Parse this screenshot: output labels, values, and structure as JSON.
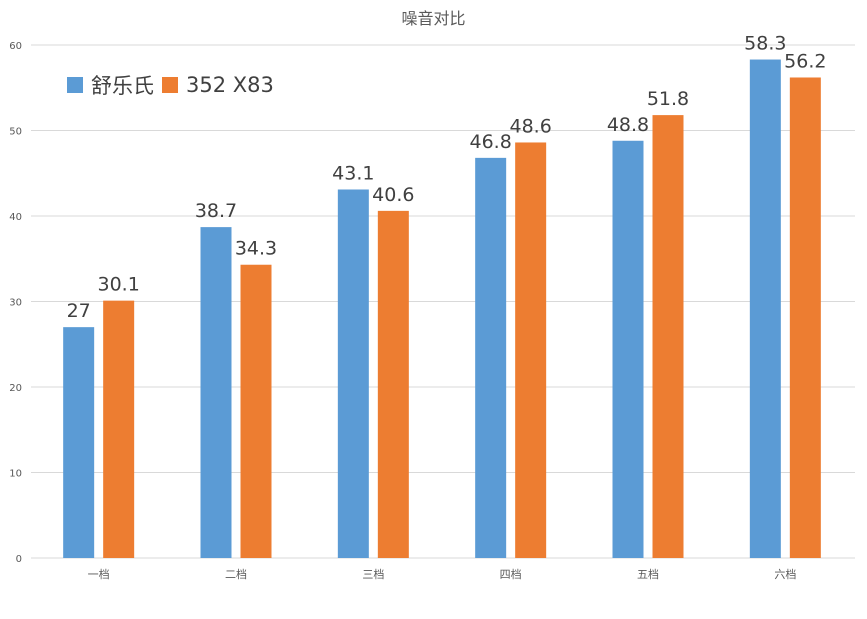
{
  "chart_data": {
    "type": "bar",
    "title": "噪音对比",
    "categories": [
      "一档",
      "二档",
      "三档",
      "四档",
      "五档",
      "六档"
    ],
    "series": [
      {
        "name": "舒乐氏",
        "color": "#5B9BD5",
        "values": [
          27,
          38.7,
          43.1,
          46.8,
          48.8,
          58.3
        ]
      },
      {
        "name": "352 X83",
        "color": "#ED7D31",
        "values": [
          30.1,
          34.3,
          40.6,
          48.6,
          51.8,
          56.2
        ]
      }
    ],
    "ylim": [
      0,
      60
    ],
    "yticks": [
      0,
      10,
      20,
      30,
      40,
      50,
      60
    ],
    "grid": true,
    "legend": "top-left",
    "xlabel": "",
    "ylabel": ""
  }
}
